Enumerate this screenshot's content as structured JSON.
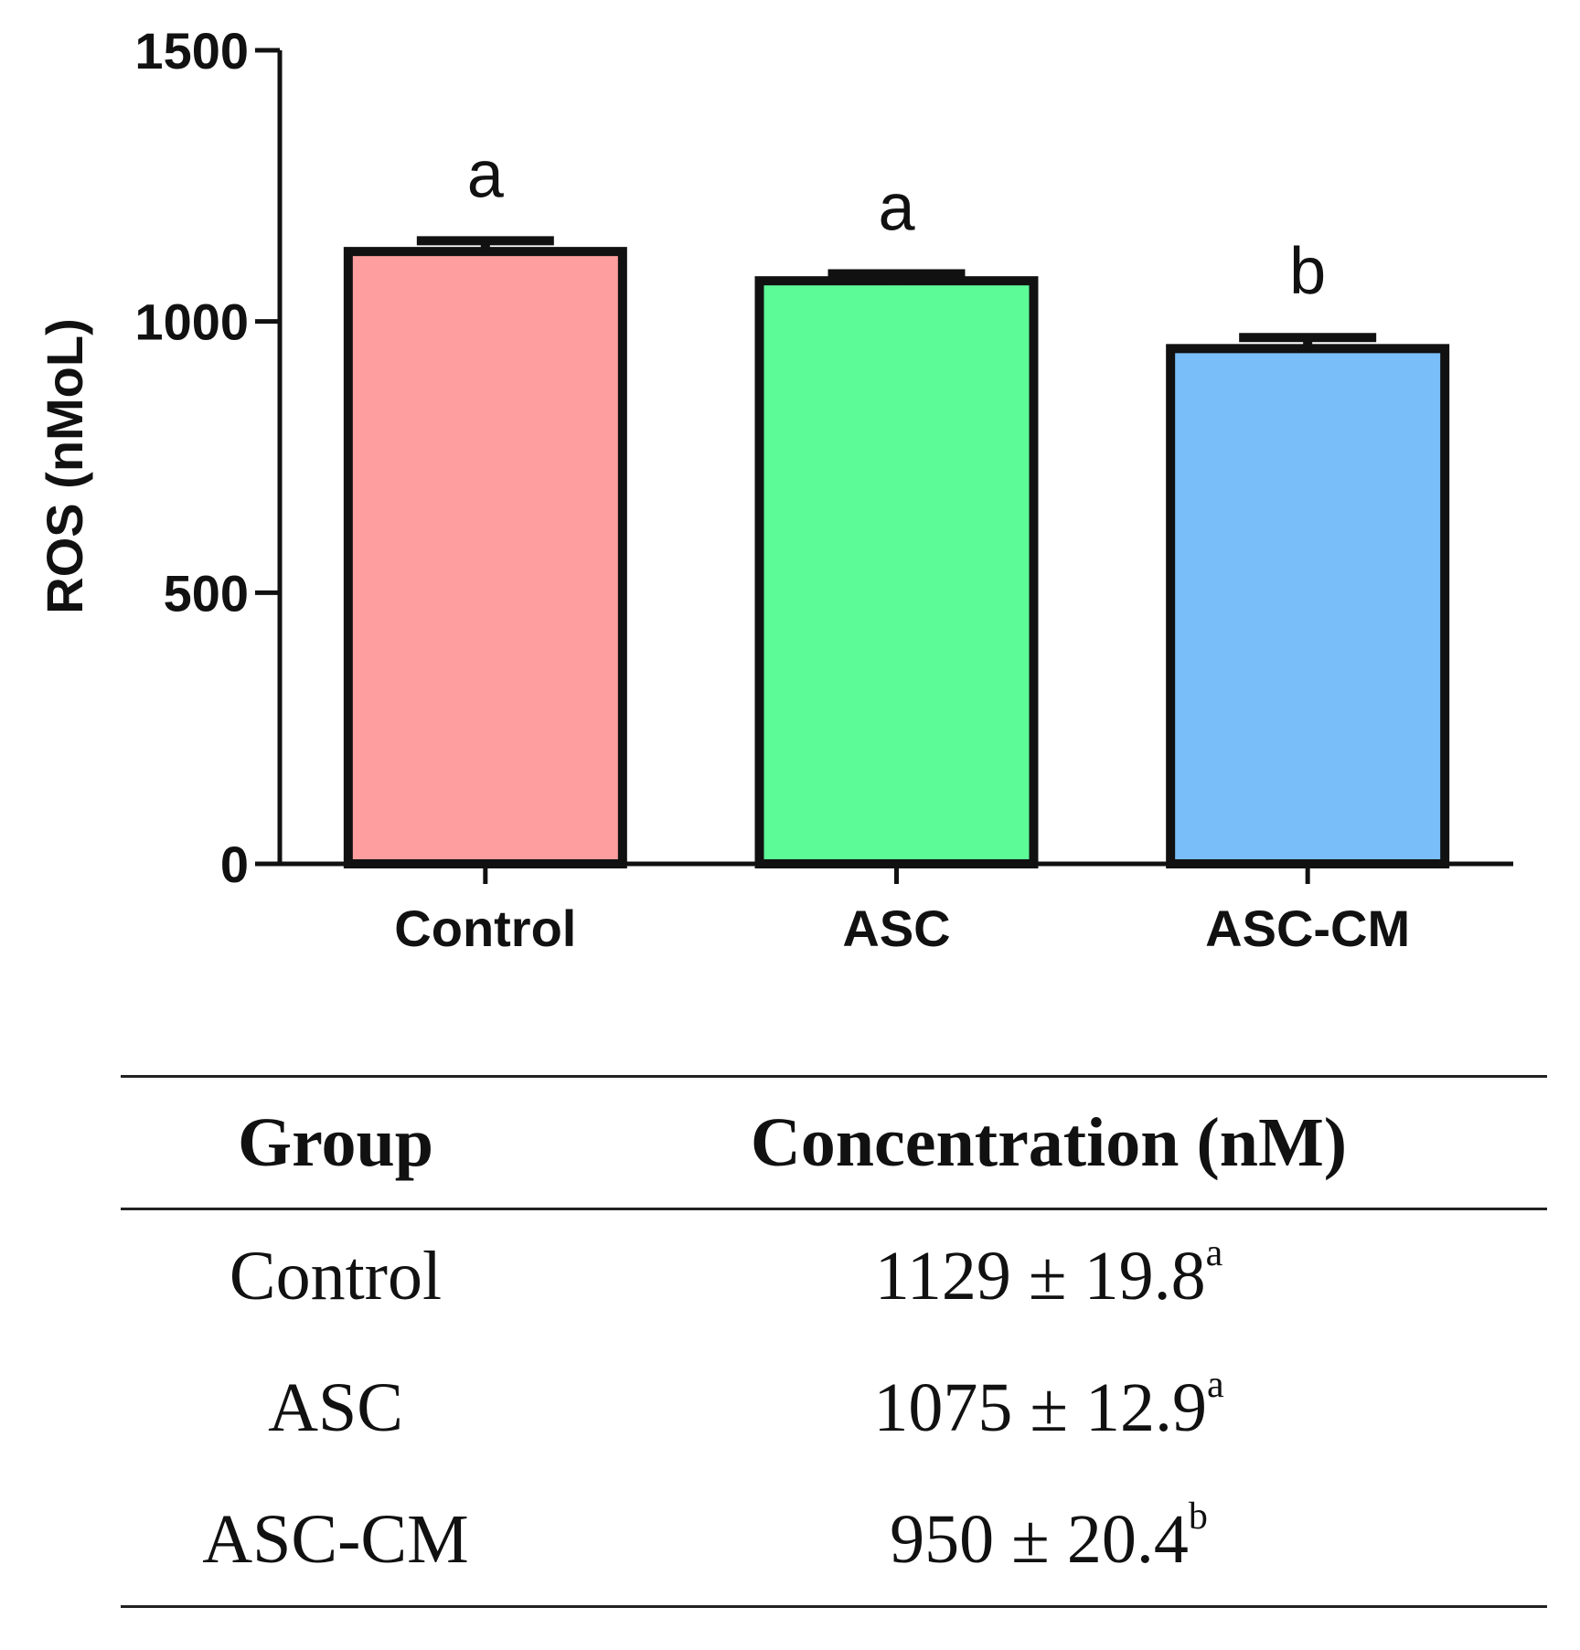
{
  "chart_data": {
    "type": "bar",
    "title": "",
    "xlabel": "",
    "ylabel": "ROS (nMoL)",
    "ylim": [
      0,
      1500
    ],
    "yticks": [
      0,
      500,
      1000,
      1500
    ],
    "grid": false,
    "categories": [
      "Control",
      "ASC",
      "ASC-CM"
    ],
    "values": [
      1129,
      1075,
      950
    ],
    "errors": [
      19.8,
      12.9,
      20.4
    ],
    "significance": [
      "a",
      "a",
      "b"
    ],
    "colors": [
      "#FF9E9E",
      "#5CFB98",
      "#79BEF9"
    ]
  },
  "table": {
    "headers": {
      "group": "Group",
      "concentration": "Concentration (nM)"
    },
    "rows": [
      {
        "group": "Control",
        "value": "1129 ± 19.8",
        "sup": "a"
      },
      {
        "group": "ASC",
        "value": "1075 ± 12.9",
        "sup": "a"
      },
      {
        "group": "ASC-CM",
        "value": "950 ± 20.4",
        "sup": "b"
      }
    ]
  }
}
